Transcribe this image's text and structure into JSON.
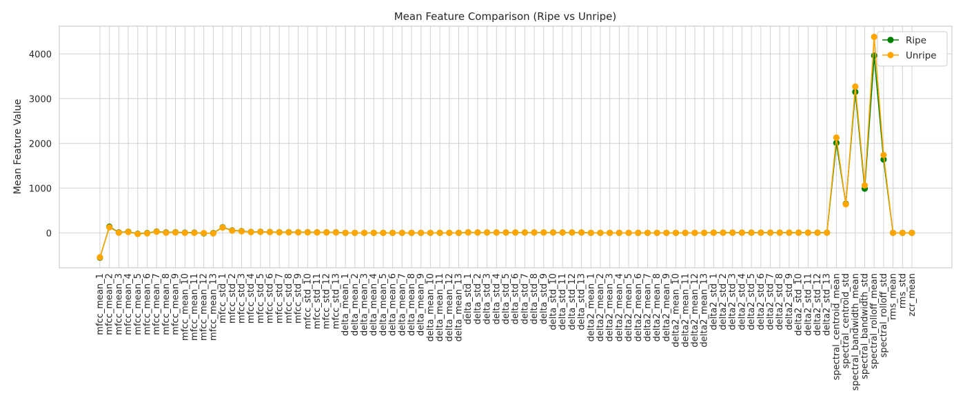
{
  "chart_data": {
    "type": "line",
    "title": "Mean Feature Comparison (Ripe vs Unripe)",
    "xlabel": "",
    "ylabel": "Mean Feature Value",
    "ylim": [
      -780,
      4620
    ],
    "yticks": [
      0,
      1000,
      2000,
      3000,
      4000
    ],
    "grid": true,
    "legend": "top-right",
    "categories": [
      "mfcc_mean_1",
      "mfcc_mean_2",
      "mfcc_mean_3",
      "mfcc_mean_4",
      "mfcc_mean_5",
      "mfcc_mean_6",
      "mfcc_mean_7",
      "mfcc_mean_8",
      "mfcc_mean_9",
      "mfcc_mean_10",
      "mfcc_mean_11",
      "mfcc_mean_12",
      "mfcc_mean_13",
      "mfcc_std_1",
      "mfcc_std_2",
      "mfcc_std_3",
      "mfcc_std_4",
      "mfcc_std_5",
      "mfcc_std_6",
      "mfcc_std_7",
      "mfcc_std_8",
      "mfcc_std_9",
      "mfcc_std_10",
      "mfcc_std_11",
      "mfcc_std_12",
      "mfcc_std_13",
      "delta_mean_1",
      "delta_mean_2",
      "delta_mean_3",
      "delta_mean_4",
      "delta_mean_5",
      "delta_mean_6",
      "delta_mean_7",
      "delta_mean_8",
      "delta_mean_9",
      "delta_mean_10",
      "delta_mean_11",
      "delta_mean_12",
      "delta_mean_13",
      "delta_std_1",
      "delta_std_2",
      "delta_std_3",
      "delta_std_4",
      "delta_std_5",
      "delta_std_6",
      "delta_std_7",
      "delta_std_8",
      "delta_std_9",
      "delta_std_10",
      "delta_std_11",
      "delta_std_12",
      "delta_std_13",
      "delta2_mean_1",
      "delta2_mean_2",
      "delta2_mean_3",
      "delta2_mean_4",
      "delta2_mean_5",
      "delta2_mean_6",
      "delta2_mean_7",
      "delta2_mean_8",
      "delta2_mean_9",
      "delta2_mean_10",
      "delta2_mean_11",
      "delta2_mean_12",
      "delta2_mean_13",
      "delta2_std_1",
      "delta2_std_2",
      "delta2_std_3",
      "delta2_std_4",
      "delta2_std_5",
      "delta2_std_6",
      "delta2_std_7",
      "delta2_std_8",
      "delta2_std_9",
      "delta2_std_10",
      "delta2_std_11",
      "delta2_std_12",
      "delta2_std_13",
      "spectral_centroid_mean",
      "spectral_centroid_std",
      "spectral_bandwidth_mean",
      "spectral_bandwidth_std",
      "spectral_rolloff_mean",
      "spectral_rolloff_std",
      "rms_mean",
      "rms_std",
      "zcr_mean"
    ],
    "series": [
      {
        "name": "Ripe",
        "color": "#008000",
        "values": [
          -555,
          140,
          10,
          25,
          -20,
          -5,
          30,
          10,
          15,
          5,
          5,
          -10,
          -5,
          125,
          55,
          40,
          20,
          25,
          20,
          15,
          15,
          15,
          15,
          12,
          12,
          12,
          0,
          0,
          0,
          0,
          0,
          0,
          0,
          0,
          0,
          0,
          0,
          0,
          0,
          10,
          8,
          8,
          8,
          8,
          8,
          8,
          8,
          8,
          8,
          8,
          8,
          8,
          0,
          0,
          0,
          0,
          0,
          0,
          0,
          0,
          0,
          0,
          0,
          0,
          0,
          5,
          5,
          5,
          5,
          5,
          5,
          5,
          5,
          5,
          5,
          5,
          5,
          5,
          2010,
          650,
          3150,
          990,
          3960,
          1640,
          0,
          0,
          0
        ]
      },
      {
        "name": "Unripe",
        "color": "#ffa500",
        "values": [
          -545,
          125,
          5,
          20,
          -25,
          -10,
          25,
          5,
          10,
          0,
          0,
          -5,
          -10,
          118,
          50,
          35,
          18,
          22,
          18,
          12,
          12,
          12,
          12,
          10,
          10,
          10,
          0,
          0,
          0,
          0,
          0,
          0,
          0,
          0,
          0,
          0,
          0,
          0,
          0,
          10,
          8,
          8,
          8,
          8,
          8,
          8,
          8,
          8,
          8,
          8,
          8,
          8,
          0,
          0,
          0,
          0,
          0,
          0,
          0,
          0,
          0,
          0,
          0,
          0,
          0,
          5,
          5,
          5,
          5,
          5,
          5,
          5,
          5,
          5,
          5,
          5,
          5,
          5,
          2130,
          640,
          3270,
          1060,
          4380,
          1740,
          0,
          0,
          0
        ]
      }
    ]
  }
}
